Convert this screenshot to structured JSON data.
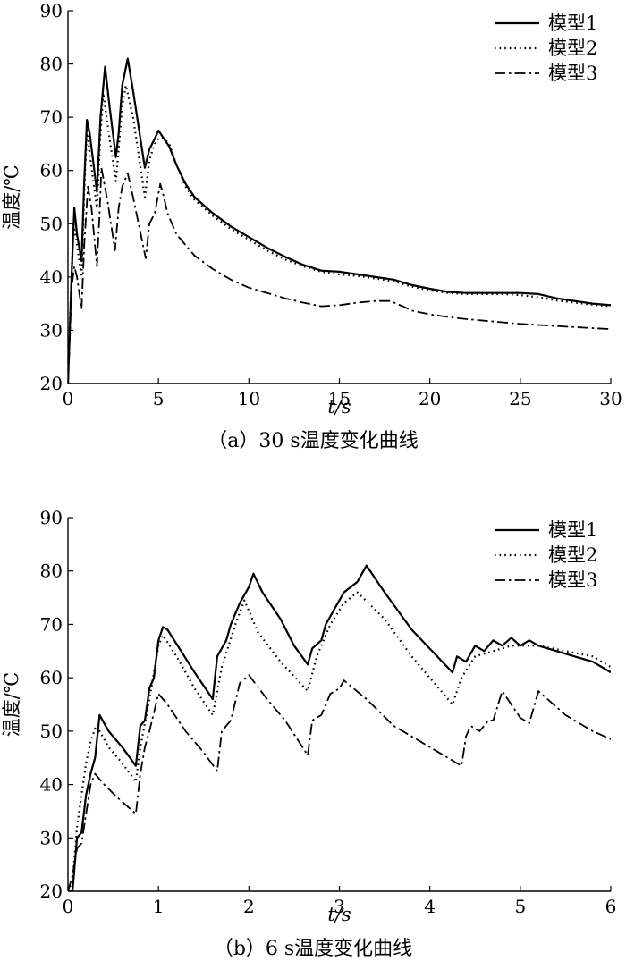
{
  "chart_data": [
    {
      "type": "line",
      "caption": "（a）30 s温度变化曲线",
      "xlabel": "t/s",
      "ylabel": "温度/℃",
      "xlim": [
        0,
        30
      ],
      "ylim": [
        20,
        90
      ],
      "xticks": [
        0,
        5,
        10,
        15,
        20,
        25,
        30
      ],
      "yticks": [
        20,
        30,
        40,
        50,
        60,
        70,
        80,
        90
      ],
      "legend_position": "top-right",
      "grid": false,
      "series": [
        {
          "name": "模型1",
          "style": "solid",
          "x": [
            0,
            0.1,
            0.2,
            0.35,
            0.5,
            0.75,
            0.9,
            1.05,
            1.2,
            1.6,
            1.8,
            2.05,
            2.3,
            2.65,
            2.8,
            3.0,
            3.3,
            3.6,
            4.25,
            4.5,
            4.8,
            5.0,
            5.3,
            5.6,
            6.0,
            6.5,
            7,
            8,
            9,
            10,
            11,
            12,
            13,
            14,
            15,
            16,
            17,
            18,
            19,
            20,
            21,
            22,
            23,
            24,
            25,
            26,
            27,
            28,
            29,
            30
          ],
          "y": [
            20,
            30,
            40,
            53,
            48,
            43,
            58,
            69.5,
            67,
            56,
            70,
            79.5,
            72,
            62.5,
            67,
            76,
            81,
            75,
            60.5,
            64,
            66,
            67.5,
            66,
            64.5,
            61,
            57.5,
            55,
            52,
            49.5,
            47.5,
            45.5,
            43.8,
            42.3,
            41.2,
            41,
            40.5,
            40,
            39.5,
            38.5,
            37.8,
            37.2,
            37,
            37,
            37,
            37,
            36.8,
            36,
            35.5,
            35,
            34.7
          ]
        },
        {
          "name": "模型2",
          "style": "dotted",
          "x": [
            0,
            0.1,
            0.3,
            0.5,
            0.75,
            0.9,
            1.05,
            1.2,
            1.6,
            1.8,
            1.95,
            2.3,
            2.65,
            2.8,
            3.0,
            3.2,
            3.6,
            4.25,
            4.5,
            4.8,
            5.0,
            5.3,
            5.6,
            6.0,
            6.5,
            7,
            8,
            9,
            10,
            11,
            12,
            13,
            14,
            15,
            16,
            17,
            18,
            19,
            20,
            21,
            22,
            23,
            24,
            25,
            26,
            27,
            28,
            29,
            30
          ],
          "y": [
            20,
            31,
            50,
            46,
            40,
            56,
            68,
            63,
            53,
            67,
            74.5,
            66,
            58,
            64,
            72,
            76,
            70,
            55,
            62,
            65,
            66,
            66,
            65,
            61,
            57,
            54.5,
            51.5,
            49,
            47,
            45,
            43.3,
            42,
            41,
            40.5,
            40.2,
            39.7,
            39.2,
            38.2,
            37.5,
            37,
            36.8,
            36.8,
            36.8,
            36.6,
            36.2,
            35.6,
            35.2,
            34.8,
            34.5
          ]
        },
        {
          "name": "模型3",
          "style": "dashdot",
          "x": [
            0,
            0.1,
            0.2,
            0.35,
            0.5,
            0.75,
            0.9,
            1.1,
            1.3,
            1.6,
            1.75,
            1.85,
            2.2,
            2.6,
            2.8,
            3.0,
            3.3,
            3.6,
            4.3,
            4.5,
            4.8,
            5.1,
            5.3,
            5.5,
            6.0,
            7,
            8,
            9,
            10,
            11,
            12,
            13,
            14,
            15,
            16,
            17,
            17.8,
            18.5,
            19,
            20,
            21,
            22,
            23,
            24,
            25,
            26,
            27,
            28,
            29,
            30
          ],
          "y": [
            20,
            28,
            38,
            42,
            40,
            34,
            46,
            57,
            53,
            42,
            52,
            60.5,
            54,
            45,
            53,
            57,
            59.5,
            55,
            43.5,
            50,
            52,
            57.5,
            55,
            52,
            48,
            44,
            41.5,
            39.5,
            38,
            37,
            36,
            35.2,
            34.5,
            34.7,
            35.2,
            35.5,
            35.5,
            34.5,
            33.7,
            33,
            32.5,
            32.1,
            31.8,
            31.5,
            31.2,
            31,
            30.8,
            30.6,
            30.4,
            30.2
          ]
        }
      ]
    },
    {
      "type": "line",
      "caption": "（b）6 s温度变化曲线",
      "xlabel": "t/s",
      "ylabel": "温度/℃",
      "xlim": [
        0,
        6
      ],
      "ylim": [
        20,
        90
      ],
      "xticks": [
        0,
        1,
        2,
        3,
        4,
        5,
        6
      ],
      "yticks": [
        20,
        30,
        40,
        50,
        60,
        70,
        80,
        90
      ],
      "legend_position": "top-right",
      "grid": false,
      "series": [
        {
          "name": "模型1",
          "style": "solid",
          "x": [
            0,
            0.05,
            0.1,
            0.15,
            0.2,
            0.25,
            0.3,
            0.35,
            0.45,
            0.6,
            0.75,
            0.8,
            0.85,
            0.9,
            0.95,
            1.0,
            1.05,
            1.1,
            1.25,
            1.4,
            1.6,
            1.65,
            1.75,
            1.8,
            1.9,
            2.0,
            2.05,
            2.15,
            2.35,
            2.5,
            2.65,
            2.7,
            2.8,
            2.85,
            2.95,
            3.05,
            3.2,
            3.3,
            3.5,
            3.8,
            4.25,
            4.3,
            4.4,
            4.5,
            4.6,
            4.7,
            4.8,
            4.9,
            5.0,
            5.1,
            5.2,
            5.4,
            5.6,
            5.8,
            6.0
          ],
          "y": [
            20,
            20,
            30,
            31,
            38,
            42,
            45,
            53,
            50,
            47,
            43.5,
            51,
            52,
            58,
            60,
            67,
            69.5,
            69,
            65,
            61,
            56,
            64,
            67,
            70,
            74,
            77,
            79.5,
            76,
            71,
            66,
            62.5,
            65.5,
            67,
            70,
            73,
            76,
            78,
            81,
            76,
            69,
            61,
            64,
            63,
            66,
            65,
            67,
            66,
            67.5,
            66,
            67,
            66,
            65,
            64,
            63,
            61
          ]
        },
        {
          "name": "模型2",
          "style": "dotted",
          "x": [
            0,
            0.05,
            0.1,
            0.2,
            0.25,
            0.3,
            0.35,
            0.45,
            0.6,
            0.75,
            0.8,
            0.9,
            1.0,
            1.05,
            1.2,
            1.4,
            1.6,
            1.7,
            1.85,
            1.95,
            2.1,
            2.35,
            2.65,
            2.75,
            2.9,
            3.05,
            3.2,
            3.5,
            3.8,
            4.25,
            4.35,
            4.5,
            4.7,
            4.9,
            5.2,
            5.5,
            5.8,
            6.0
          ],
          "y": [
            20,
            22,
            32,
            44,
            48,
            50.5,
            50,
            47,
            44,
            40.5,
            47,
            56,
            66,
            68,
            64,
            58,
            53,
            62,
            70,
            74.5,
            68.5,
            63,
            57.5,
            64,
            70,
            74,
            76,
            71,
            64,
            55,
            60,
            64,
            65,
            66,
            66,
            65,
            64,
            62
          ]
        },
        {
          "name": "模型3",
          "style": "dashdot",
          "x": [
            0,
            0.05,
            0.1,
            0.15,
            0.25,
            0.3,
            0.4,
            0.55,
            0.75,
            0.8,
            0.85,
            0.9,
            1.0,
            1.1,
            1.3,
            1.5,
            1.65,
            1.7,
            1.75,
            1.8,
            1.9,
            2.0,
            2.2,
            2.4,
            2.65,
            2.7,
            2.8,
            2.9,
            3.0,
            3.05,
            3.3,
            3.6,
            3.9,
            4.35,
            4.4,
            4.45,
            4.55,
            4.65,
            4.7,
            4.8,
            4.9,
            5.0,
            5.1,
            5.2,
            5.3,
            5.5,
            5.8,
            6.0
          ],
          "y": [
            20,
            23,
            28,
            29,
            40,
            42,
            40,
            37.5,
            34.5,
            42,
            47,
            50,
            57,
            55,
            50,
            46,
            42.5,
            50,
            51,
            52,
            59,
            60.5,
            56,
            52,
            45.5,
            52,
            53,
            57,
            58,
            59.5,
            56,
            51,
            48,
            43.5,
            49,
            51,
            50,
            52,
            52,
            57.5,
            55,
            52.5,
            51.5,
            57.5,
            56,
            53,
            50,
            48.5
          ]
        }
      ]
    }
  ]
}
